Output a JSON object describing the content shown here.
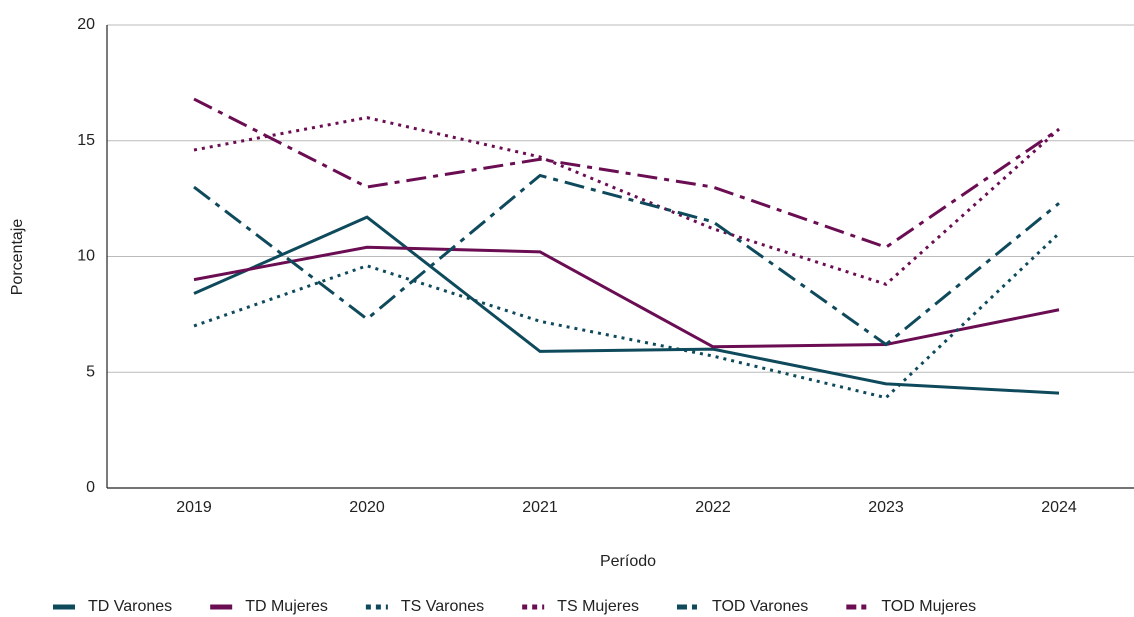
{
  "chart_data": {
    "type": "line",
    "x_label": "Período",
    "y_label": "Porcentaje",
    "categories": [
      "2019",
      "2020",
      "2021",
      "2022",
      "2023",
      "2024"
    ],
    "ylim": [
      0,
      20
    ],
    "yticks": [
      0,
      5,
      10,
      15,
      20
    ],
    "grid": true,
    "legend": "bottom",
    "series": [
      {
        "name": "TD Varones",
        "color": "#0e4a5c",
        "style": "solid",
        "values": [
          8.4,
          11.7,
          5.9,
          6.0,
          4.5,
          4.1
        ]
      },
      {
        "name": "TD Mujeres",
        "color": "#6a0d52",
        "style": "solid",
        "values": [
          9.0,
          10.4,
          10.2,
          6.1,
          6.2,
          7.7
        ]
      },
      {
        "name": "TS Varones",
        "color": "#0e4a5c",
        "style": "dotted",
        "values": [
          7.0,
          9.6,
          7.2,
          5.7,
          3.9,
          11.0
        ]
      },
      {
        "name": "TS Mujeres",
        "color": "#6a0d52",
        "style": "dotted",
        "values": [
          14.6,
          16.0,
          14.3,
          11.2,
          8.8,
          15.5
        ]
      },
      {
        "name": "TOD Varones",
        "color": "#0e4a5c",
        "style": "dashdot",
        "values": [
          13.0,
          7.3,
          13.5,
          11.5,
          6.2,
          12.3
        ]
      },
      {
        "name": "TOD Mujeres",
        "color": "#6a0d52",
        "style": "dashdot",
        "values": [
          16.8,
          13.0,
          14.2,
          13.0,
          10.4,
          15.5
        ]
      }
    ]
  }
}
